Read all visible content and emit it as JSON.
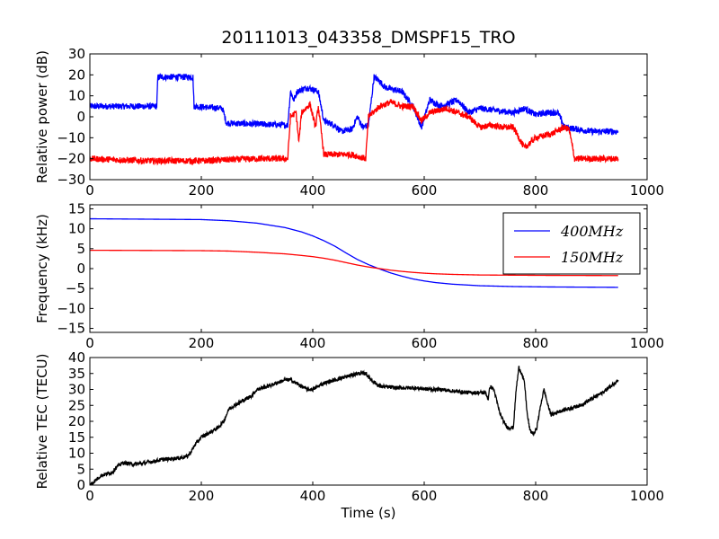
{
  "title": "20111013_043358_DMSPF15_TRO",
  "chart_data": [
    {
      "type": "line",
      "ylabel": "Relative power (dB)",
      "xlim": [
        0,
        1000
      ],
      "ylim": [
        -30,
        30
      ],
      "xticks": [
        "0",
        "200",
        "400",
        "600",
        "800",
        "1000"
      ],
      "yticks": [
        "30",
        "20",
        "10",
        "0",
        "−10",
        "−20",
        "−30"
      ],
      "grid": false,
      "series": [
        {
          "color": "#0000ff",
          "noise": 1.5,
          "points": [
            [
              0,
              5
            ],
            [
              120,
              5
            ],
            [
              122,
              19
            ],
            [
              185,
              19
            ],
            [
              187,
              5
            ],
            [
              238,
              4
            ],
            [
              245,
              -3
            ],
            [
              355,
              -4
            ],
            [
              360,
              12
            ],
            [
              366,
              8
            ],
            [
              372,
              12
            ],
            [
              390,
              14
            ],
            [
              410,
              12
            ],
            [
              420,
              -2
            ],
            [
              440,
              -4
            ],
            [
              450,
              -7
            ],
            [
              470,
              -6
            ],
            [
              480,
              0
            ],
            [
              490,
              -5
            ],
            [
              500,
              -4
            ],
            [
              510,
              19
            ],
            [
              520,
              17
            ],
            [
              530,
              14
            ],
            [
              560,
              12
            ],
            [
              580,
              5
            ],
            [
              595,
              -5
            ],
            [
              610,
              8
            ],
            [
              630,
              5
            ],
            [
              660,
              8
            ],
            [
              680,
              2
            ],
            [
              700,
              4
            ],
            [
              730,
              3
            ],
            [
              760,
              2
            ],
            [
              780,
              4
            ],
            [
              800,
              1
            ],
            [
              820,
              2
            ],
            [
              840,
              2
            ],
            [
              852,
              -5
            ],
            [
              900,
              -7
            ],
            [
              948,
              -7
            ]
          ]
        },
        {
          "color": "#ff0000",
          "noise": 1.5,
          "points": [
            [
              0,
              -20
            ],
            [
              100,
              -21
            ],
            [
              200,
              -21
            ],
            [
              300,
              -20
            ],
            [
              355,
              -20
            ],
            [
              360,
              0
            ],
            [
              370,
              2
            ],
            [
              375,
              -12
            ],
            [
              380,
              2
            ],
            [
              395,
              6
            ],
            [
              405,
              -5
            ],
            [
              410,
              5
            ],
            [
              420,
              -18
            ],
            [
              440,
              -18
            ],
            [
              470,
              -18
            ],
            [
              495,
              -20
            ],
            [
              500,
              0
            ],
            [
              520,
              5
            ],
            [
              540,
              7
            ],
            [
              560,
              5
            ],
            [
              580,
              5
            ],
            [
              595,
              -2
            ],
            [
              610,
              2
            ],
            [
              640,
              4
            ],
            [
              660,
              2
            ],
            [
              680,
              0
            ],
            [
              700,
              -5
            ],
            [
              720,
              -4
            ],
            [
              740,
              -5
            ],
            [
              760,
              -5
            ],
            [
              780,
              -15
            ],
            [
              800,
              -10
            ],
            [
              830,
              -8
            ],
            [
              850,
              -5
            ],
            [
              860,
              -6
            ],
            [
              870,
              -20
            ],
            [
              900,
              -20
            ],
            [
              948,
              -20
            ]
          ]
        }
      ]
    },
    {
      "type": "line",
      "ylabel": "Frequency (kHz)",
      "xlim": [
        0,
        1000
      ],
      "ylim": [
        -16,
        16
      ],
      "xticks": [
        "0",
        "200",
        "400",
        "600",
        "800",
        "1000"
      ],
      "yticks": [
        "15",
        "10",
        "5",
        "0",
        "−5",
        "−10",
        "−15"
      ],
      "grid": false,
      "legend_position": "upper-right",
      "series": [
        {
          "name": "400MHz",
          "color": "#0000ff",
          "noise": 0,
          "points": [
            [
              0,
              12.5
            ],
            [
              100,
              12.4
            ],
            [
              200,
              12.3
            ],
            [
              250,
              12.0
            ],
            [
              300,
              11.4
            ],
            [
              350,
              10.3
            ],
            [
              380,
              9.2
            ],
            [
              400,
              8.2
            ],
            [
              420,
              7.0
            ],
            [
              440,
              5.6
            ],
            [
              460,
              3.9
            ],
            [
              480,
              2.3
            ],
            [
              500,
              1.0
            ],
            [
              520,
              -0.1
            ],
            [
              540,
              -1.1
            ],
            [
              560,
              -1.9
            ],
            [
              580,
              -2.6
            ],
            [
              600,
              -3.1
            ],
            [
              620,
              -3.5
            ],
            [
              650,
              -3.9
            ],
            [
              700,
              -4.3
            ],
            [
              760,
              -4.5
            ],
            [
              820,
              -4.6
            ],
            [
              948,
              -4.7
            ]
          ]
        },
        {
          "name": "150MHz",
          "color": "#ff0000",
          "noise": 0,
          "points": [
            [
              0,
              4.6
            ],
            [
              100,
              4.55
            ],
            [
              200,
              4.5
            ],
            [
              250,
              4.4
            ],
            [
              300,
              4.1
            ],
            [
              350,
              3.7
            ],
            [
              380,
              3.3
            ],
            [
              400,
              3.0
            ],
            [
              420,
              2.6
            ],
            [
              440,
              2.1
            ],
            [
              460,
              1.5
            ],
            [
              480,
              0.9
            ],
            [
              500,
              0.4
            ],
            [
              520,
              0.0
            ],
            [
              540,
              -0.4
            ],
            [
              560,
              -0.7
            ],
            [
              580,
              -0.95
            ],
            [
              600,
              -1.15
            ],
            [
              620,
              -1.3
            ],
            [
              650,
              -1.45
            ],
            [
              700,
              -1.6
            ],
            [
              760,
              -1.65
            ],
            [
              820,
              -1.7
            ],
            [
              948,
              -1.75
            ]
          ]
        }
      ]
    },
    {
      "type": "line",
      "xlabel": "Time (s)",
      "ylabel": "Relative TEC (TECU)",
      "xlim": [
        0,
        1000
      ],
      "ylim": [
        0,
        40
      ],
      "xticks": [
        "0",
        "200",
        "400",
        "600",
        "800",
        "1000"
      ],
      "yticks": [
        "40",
        "35",
        "30",
        "25",
        "20",
        "15",
        "10",
        "5",
        "0"
      ],
      "grid": false,
      "series": [
        {
          "color": "#000000",
          "noise": 0.6,
          "points": [
            [
              0,
              0
            ],
            [
              10,
              1.5
            ],
            [
              20,
              3
            ],
            [
              40,
              4
            ],
            [
              50,
              6
            ],
            [
              60,
              7
            ],
            [
              80,
              6.5
            ],
            [
              100,
              7
            ],
            [
              130,
              8
            ],
            [
              160,
              8.5
            ],
            [
              175,
              9
            ],
            [
              180,
              10
            ],
            [
              190,
              13
            ],
            [
              200,
              15
            ],
            [
              220,
              17
            ],
            [
              230,
              18
            ],
            [
              240,
              20
            ],
            [
              250,
              24
            ],
            [
              270,
              26
            ],
            [
              290,
              28
            ],
            [
              300,
              30
            ],
            [
              320,
              31
            ],
            [
              350,
              33
            ],
            [
              360,
              33
            ],
            [
              370,
              32
            ],
            [
              390,
              30
            ],
            [
              400,
              30
            ],
            [
              410,
              31
            ],
            [
              420,
              32
            ],
            [
              440,
              33
            ],
            [
              460,
              34
            ],
            [
              480,
              35
            ],
            [
              495,
              35
            ],
            [
              505,
              33
            ],
            [
              520,
              31
            ],
            [
              550,
              30.5
            ],
            [
              580,
              30.5
            ],
            [
              610,
              30
            ],
            [
              630,
              30
            ],
            [
              650,
              29.5
            ],
            [
              680,
              29
            ],
            [
              700,
              29
            ],
            [
              710,
              29
            ],
            [
              715,
              27
            ],
            [
              718,
              31
            ],
            [
              725,
              30
            ],
            [
              735,
              23
            ],
            [
              742,
              20
            ],
            [
              750,
              18
            ],
            [
              760,
              18
            ],
            [
              765,
              30
            ],
            [
              770,
              37
            ],
            [
              775,
              35
            ],
            [
              780,
              32
            ],
            [
              785,
              22
            ],
            [
              790,
              17
            ],
            [
              797,
              16
            ],
            [
              802,
              18
            ],
            [
              810,
              26
            ],
            [
              815,
              30
            ],
            [
              818,
              28
            ],
            [
              822,
              25
            ],
            [
              828,
              22
            ],
            [
              840,
              23
            ],
            [
              860,
              24
            ],
            [
              880,
              25
            ],
            [
              900,
              27
            ],
            [
              920,
              29
            ],
            [
              935,
              31
            ],
            [
              948,
              33
            ]
          ]
        }
      ]
    }
  ]
}
